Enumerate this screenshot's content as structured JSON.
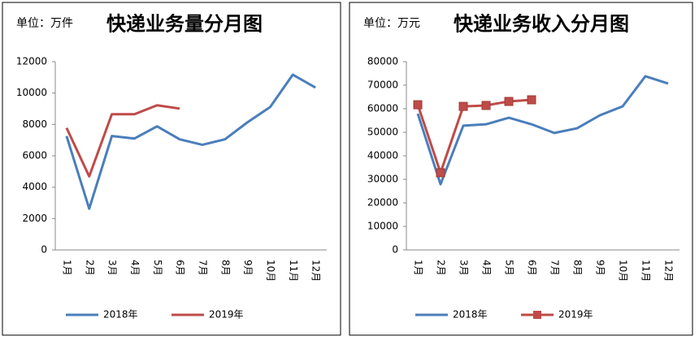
{
  "chart_data": [
    {
      "type": "line",
      "title": "快递业务量分月图",
      "unit_label": "单位：万件",
      "categories": [
        "1月",
        "2月",
        "3月",
        "4月",
        "5月",
        "6月",
        "7月",
        "8月",
        "9月",
        "10月",
        "11月",
        "12月"
      ],
      "series": [
        {
          "name": "2018年",
          "color": "#4a7ebb",
          "values": [
            7260,
            2630,
            7260,
            7100,
            7880,
            7050,
            6700,
            7050,
            8140,
            9110,
            11170,
            10350
          ]
        },
        {
          "name": "2019年",
          "color": "#be4b48",
          "values": [
            7780,
            4690,
            8650,
            8650,
            9220,
            9010,
            null,
            null,
            null,
            null,
            null,
            null
          ]
        }
      ],
      "ylim": [
        0,
        12000
      ],
      "yticks": [
        0,
        2000,
        4000,
        6000,
        8000,
        10000,
        12000
      ]
    },
    {
      "type": "line",
      "title": "快递业务收入分月图",
      "unit_label": "单位：万元",
      "categories": [
        "1月",
        "2月",
        "3月",
        "4月",
        "5月",
        "6月",
        "7月",
        "8月",
        "9月",
        "10月",
        "11月",
        "12月"
      ],
      "series": [
        {
          "name": "2018年",
          "color": "#4a7ebb",
          "values": [
            57900,
            27900,
            52800,
            53400,
            56200,
            53400,
            49700,
            51700,
            57200,
            61000,
            73800,
            70700
          ]
        },
        {
          "name": "2019年",
          "color": "#be4b48",
          "marker": "square",
          "values": [
            61700,
            32800,
            61000,
            61400,
            63100,
            63800,
            null,
            null,
            null,
            null,
            null,
            null
          ]
        }
      ],
      "ylim": [
        0,
        80000
      ],
      "yticks": [
        0,
        10000,
        20000,
        30000,
        40000,
        50000,
        60000,
        70000,
        80000
      ]
    }
  ]
}
